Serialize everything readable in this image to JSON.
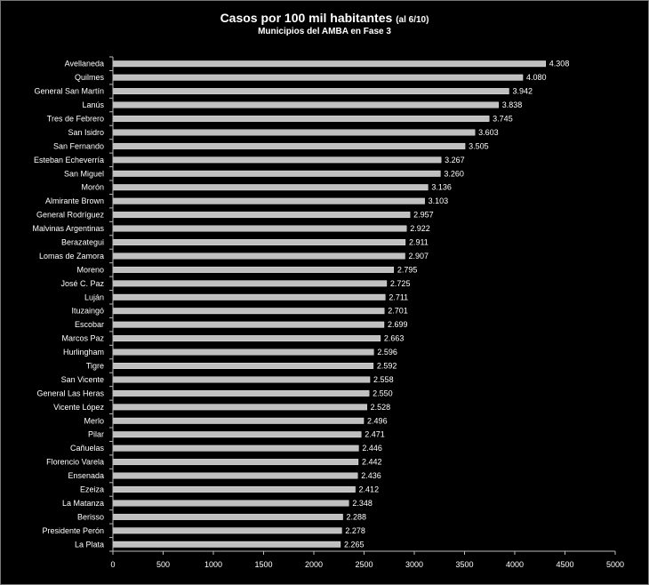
{
  "chart_data": {
    "type": "bar",
    "orientation": "horizontal",
    "title": "Casos por 100 mil habitantes",
    "title_note": "(al 6/10)",
    "subtitle": "Municipios del AMBA en Fase 3",
    "xlabel": "",
    "ylabel": "",
    "xlim": [
      0,
      5000
    ],
    "xticks": [
      0,
      500,
      1000,
      1500,
      2000,
      2500,
      3000,
      3500,
      4000,
      4500,
      5000
    ],
    "grid": false,
    "bar_color": "#c0c0c0",
    "background": "#000000",
    "categories": [
      "Avellaneda",
      "Quilmes",
      "General San Martín",
      "Lanús",
      "Tres de Febrero",
      "San Isidro",
      "San Fernando",
      "Esteban Echeverría",
      "San Miguel",
      "Morón",
      "Almirante Brown",
      "General Rodríguez",
      "Malvinas Argentinas",
      "Berazategui",
      "Lomas de Zamora",
      "Moreno",
      "José C. Paz",
      "Luján",
      "Ituzaingó",
      "Escobar",
      "Marcos Paz",
      "Hurlingham",
      "Tigre",
      "San Vicente",
      "General Las Heras",
      "Vicente López",
      "Merlo",
      "Pilar",
      "Cañuelas",
      "Florencio Varela",
      "Ensenada",
      "Ezeiza",
      "La Matanza",
      "Berisso",
      "Presidente Perón",
      "La Plata"
    ],
    "values": [
      4308,
      4080,
      3942,
      3838,
      3745,
      3603,
      3505,
      3267,
      3260,
      3136,
      3103,
      2957,
      2922,
      2911,
      2907,
      2795,
      2725,
      2711,
      2701,
      2699,
      2663,
      2596,
      2592,
      2558,
      2550,
      2528,
      2496,
      2471,
      2446,
      2442,
      2436,
      2412,
      2348,
      2288,
      2278,
      2265
    ],
    "value_labels": [
      "4.308",
      "4.080",
      "3.942",
      "3.838",
      "3.745",
      "3.603",
      "3.505",
      "3.267",
      "3.260",
      "3.136",
      "3.103",
      "2.957",
      "2.922",
      "2.911",
      "2.907",
      "2.795",
      "2.725",
      "2.711",
      "2.701",
      "2.699",
      "2.663",
      "2.596",
      "2.592",
      "2.558",
      "2.550",
      "2.528",
      "2.496",
      "2.471",
      "2.446",
      "2.442",
      "2.436",
      "2.412",
      "2.348",
      "2.288",
      "2.278",
      "2.265"
    ]
  }
}
